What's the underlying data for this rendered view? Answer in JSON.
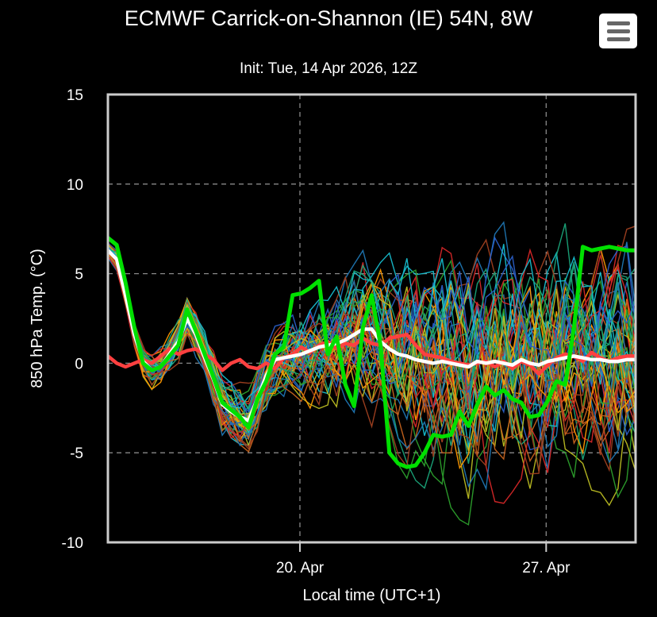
{
  "header": {
    "title": "ECMWF Carrick-on-Shannon (IE) 54N, 8W",
    "subtitle": "Init: Tue, 14 Apr 2026, 12Z",
    "menu_icon": "hamburger-menu-icon"
  },
  "colors": {
    "background": "#000000",
    "grid": "#888888",
    "frame": "#cccccc",
    "control_run": "#00e000",
    "ensemble_mean": "#ffffff",
    "climate": "#ff4040",
    "member_palette": [
      "#1f77b4",
      "#ff9900",
      "#2ca02c",
      "#d62728",
      "#17becf",
      "#bcbd22",
      "#2a5fc8",
      "#c8641e",
      "#1aa57a",
      "#a04020"
    ]
  },
  "chart_data": {
    "type": "line",
    "title": "ECMWF Carrick-on-Shannon (IE) 54N, 8W",
    "subtitle": "Init: Tue, 14 Apr 2026, 12Z",
    "xlabel": "Local time (UTC+1)",
    "ylabel": "850 hPa Temp. (°C)",
    "ylim": [
      -10,
      15
    ],
    "yticks": [
      15,
      10,
      5,
      0,
      -5,
      -10
    ],
    "x_start": "2026-04-14 13:00",
    "x_end": "2026-04-29 13:00",
    "xticks": [
      {
        "x": "2026-04-20 00:00",
        "label": "20. Apr"
      },
      {
        "x": "2026-04-27 00:00",
        "label": "27. Apr"
      }
    ],
    "step_hours": 6,
    "grid": true,
    "legend": "none",
    "ensemble_members": 50,
    "ensemble_spread_note": "",
    "series": [
      {
        "role": "control",
        "values": [
          7.0,
          6.6,
          4.5,
          2.0,
          0.0,
          -0.4,
          -0.2,
          0.4,
          1.0,
          3.0,
          1.8,
          0.5,
          -0.8,
          -2.2,
          -2.6,
          -3.0,
          -3.6,
          -2.0,
          -1.0,
          0.5,
          0.9,
          3.8,
          3.9,
          4.2,
          4.6,
          0.5,
          1.5,
          -1.2,
          -2.4,
          2.0,
          3.8,
          1.0,
          -5.0,
          -5.6,
          -5.8,
          -5.7,
          -5.0,
          -4.0,
          -4.1,
          -4.0,
          -2.7,
          -3.5,
          -2.3,
          -1.3,
          -1.8,
          -1.5,
          -2.0,
          -2.2,
          -3.0,
          -2.9,
          -2.1,
          -1.0,
          -1.2,
          2.0,
          6.5,
          6.3,
          6.4,
          6.5,
          6.4,
          6.3,
          6.3
        ]
      },
      {
        "role": "mean",
        "values": [
          6.3,
          5.8,
          3.8,
          1.6,
          0.1,
          -0.4,
          -0.2,
          0.5,
          1.2,
          2.5,
          1.6,
          0.3,
          -0.9,
          -2.3,
          -2.7,
          -3.0,
          -3.2,
          -2.0,
          -0.7,
          0.2,
          0.3,
          0.4,
          0.5,
          0.7,
          0.9,
          1.0,
          1.1,
          1.3,
          1.6,
          1.9,
          1.9,
          1.2,
          0.8,
          0.5,
          0.4,
          0.2,
          0.1,
          0.0,
          0.1,
          0.0,
          -0.1,
          -0.2,
          0.1,
          0.0,
          0.1,
          0.0,
          -0.1,
          0.2,
          0.0,
          -0.1,
          0.1,
          0.2,
          0.3,
          0.4,
          0.3,
          0.2,
          0.2,
          0.1,
          0.1,
          0.2,
          0.2
        ]
      },
      {
        "role": "climate",
        "values": [
          0.4,
          0.0,
          -0.2,
          0.0,
          0.2,
          0.0,
          0.4,
          0.8,
          0.5,
          0.7,
          0.8,
          0.5,
          0.2,
          -0.4,
          0.0,
          0.2,
          -0.2,
          -0.3,
          0.0,
          -0.3,
          0.3,
          0.5,
          0.9,
          0.6,
          1.0,
          1.2,
          0.8,
          1.1,
          1.0,
          1.4,
          1.1,
          1.0,
          1.4,
          1.5,
          1.6,
          1.0,
          0.5,
          0.4,
          0.3,
          0.1,
          0.0,
          -0.1,
          0.0,
          0.1,
          -0.2,
          0.1,
          -0.3,
          0.1,
          -0.1,
          -0.6,
          -0.1,
          0.3,
          0.5,
          0.4,
          0.1,
          0.6,
          0.3,
          0.1,
          0.3,
          0.4,
          0.4
        ]
      }
    ]
  }
}
